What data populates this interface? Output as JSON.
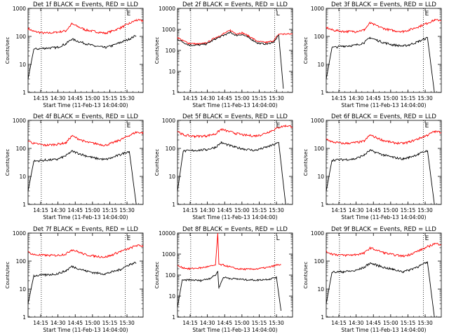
{
  "shared": {
    "ylabel": "Counts/sec",
    "xlabel": "Start Time (11-Feb-13 14:04:00)",
    "xticks": [
      {
        "t": 11,
        "label": "14:15"
      },
      {
        "t": 26,
        "label": "14:30"
      },
      {
        "t": 41,
        "label": "14:45"
      },
      {
        "t": 56,
        "label": "15:00"
      },
      {
        "t": 71,
        "label": "15:15"
      },
      {
        "t": 86,
        "label": "15:30"
      }
    ],
    "yticks": [
      {
        "v": 1,
        "label": "1"
      },
      {
        "v": 10,
        "label": "10"
      },
      {
        "v": 100,
        "label": "100"
      },
      {
        "v": 1000,
        "label": "1000"
      }
    ],
    "yticks_big": [
      {
        "v": 1,
        "label": "1"
      },
      {
        "v": 10,
        "label": "10"
      },
      {
        "v": 100,
        "label": "100"
      },
      {
        "v": 1000,
        "label": "1000"
      },
      {
        "v": 10000,
        "label": "10000"
      }
    ],
    "xlim": [
      0,
      100
    ],
    "night_markers_minutes": [
      11.5,
      84.5
    ],
    "series_colors": {
      "events": "#000000",
      "lld": "#ff0000"
    }
  },
  "chart_data": [
    {
      "type": "line",
      "title": "Det 1f BLACK = Events, RED = LLD",
      "yscale": "log",
      "ylim": [
        1,
        1000
      ],
      "marker": "E",
      "x": [
        0,
        5,
        15,
        25,
        33,
        38,
        50,
        58,
        67,
        72,
        80,
        88,
        94,
        100
      ],
      "series": [
        {
          "values": [
            190,
            150,
            130,
            140,
            160,
            280,
            170,
            150,
            130,
            150,
            200,
            290,
            380,
            360
          ]
        },
        {
          "values": [
            3,
            35,
            38,
            40,
            55,
            80,
            55,
            45,
            40,
            45,
            60,
            80,
            110,
            null
          ]
        }
      ]
    },
    {
      "type": "line",
      "title": "Det 2f BLACK = Events, RED = LLD",
      "yscale": "log",
      "ylim": [
        1,
        10000
      ],
      "marker": "L",
      "x": [
        0,
        4,
        10,
        18,
        25,
        32,
        40,
        46,
        51,
        56,
        62,
        70,
        78,
        84,
        88,
        92,
        100
      ],
      "series": [
        {
          "values": [
            420,
            300,
            220,
            200,
            220,
            380,
            620,
            900,
            620,
            700,
            480,
            260,
            240,
            300,
            600,
            600,
            600
          ]
        },
        {
          "values": [
            350,
            260,
            180,
            180,
            200,
            330,
            520,
            720,
            520,
            580,
            400,
            220,
            200,
            260,
            520,
            1.5,
            null
          ]
        }
      ]
    },
    {
      "type": "line",
      "title": "Det 3f BLACK = Events, RED = LLD",
      "yscale": "log",
      "ylim": [
        1,
        1000
      ],
      "marker": "E",
      "x": [
        0,
        5,
        15,
        25,
        33,
        38,
        50,
        58,
        67,
        72,
        80,
        88,
        94,
        100
      ],
      "series": [
        {
          "values": [
            210,
            170,
            150,
            150,
            170,
            300,
            190,
            160,
            150,
            170,
            220,
            300,
            380,
            380
          ]
        },
        {
          "values": [
            3,
            40,
            45,
            48,
            60,
            90,
            60,
            50,
            45,
            50,
            65,
            90,
            1,
            null
          ]
        }
      ]
    },
    {
      "type": "line",
      "title": "Det 4f BLACK = Events, RED = LLD",
      "yscale": "log",
      "ylim": [
        1,
        1000
      ],
      "marker": "E",
      "x": [
        0,
        5,
        15,
        25,
        33,
        38,
        50,
        58,
        67,
        72,
        80,
        88,
        94,
        100
      ],
      "series": [
        {
          "values": [
            190,
            150,
            130,
            140,
            160,
            280,
            170,
            150,
            130,
            150,
            200,
            290,
            380,
            360
          ]
        },
        {
          "values": [
            3,
            35,
            38,
            40,
            55,
            80,
            55,
            45,
            40,
            45,
            60,
            80,
            1,
            null
          ]
        }
      ]
    },
    {
      "type": "line",
      "title": "Det 5f BLACK = Events, RED = LLD",
      "yscale": "log",
      "ylim": [
        1,
        1000
      ],
      "marker": "E",
      "x": [
        0,
        5,
        15,
        25,
        33,
        38,
        50,
        58,
        67,
        72,
        80,
        88,
        94,
        100
      ],
      "series": [
        {
          "values": [
            420,
            300,
            270,
            280,
            330,
            480,
            350,
            300,
            280,
            300,
            400,
            560,
            650,
            600
          ]
        },
        {
          "values": [
            3,
            80,
            85,
            90,
            110,
            160,
            110,
            95,
            85,
            95,
            120,
            160,
            1,
            null
          ]
        }
      ]
    },
    {
      "type": "line",
      "title": "Det 6f BLACK = Events, RED = LLD",
      "yscale": "log",
      "ylim": [
        1,
        1000
      ],
      "marker": "E",
      "x": [
        0,
        5,
        15,
        25,
        33,
        38,
        50,
        58,
        67,
        72,
        80,
        88,
        94,
        100
      ],
      "series": [
        {
          "values": [
            220,
            170,
            150,
            160,
            180,
            300,
            190,
            160,
            150,
            170,
            220,
            300,
            400,
            380
          ]
        },
        {
          "values": [
            3,
            38,
            40,
            42,
            58,
            85,
            58,
            48,
            42,
            48,
            62,
            85,
            1,
            null
          ]
        }
      ]
    },
    {
      "type": "line",
      "title": "Det 7f BLACK = Events, RED = LLD",
      "yscale": "log",
      "ylim": [
        1,
        1000
      ],
      "marker": "E",
      "x": [
        0,
        5,
        15,
        25,
        33,
        38,
        50,
        58,
        67,
        72,
        80,
        88,
        94,
        100
      ],
      "series": [
        {
          "values": [
            210,
            170,
            160,
            160,
            180,
            260,
            170,
            150,
            140,
            160,
            220,
            280,
            360,
            350
          ]
        },
        {
          "values": [
            3,
            30,
            32,
            35,
            45,
            65,
            45,
            38,
            35,
            40,
            50,
            75,
            90,
            null
          ]
        }
      ]
    },
    {
      "type": "line",
      "title": "Det 8f BLACK = Events, RED = LLD",
      "yscale": "log",
      "ylim": [
        1,
        10000
      ],
      "marker": "L",
      "x": [
        0,
        4,
        10,
        20,
        28,
        33,
        35,
        36,
        40,
        45,
        52,
        60,
        70,
        80,
        86,
        90,
        96,
        100
      ],
      "series": [
        {
          "values": [
            280,
            230,
            200,
            220,
            260,
            300,
            10000,
            320,
            300,
            250,
            200,
            190,
            200,
            240,
            300,
            320,
            null,
            null
          ]
        },
        {
          "values": [
            3,
            55,
            60,
            55,
            70,
            100,
            150,
            25,
            80,
            70,
            65,
            60,
            58,
            65,
            80,
            2,
            null,
            null
          ]
        }
      ]
    },
    {
      "type": "line",
      "title": "Det 9f BLACK = Events, RED = LLD",
      "yscale": "log",
      "ylim": [
        1,
        1000
      ],
      "marker": "E",
      "x": [
        0,
        5,
        15,
        25,
        33,
        38,
        50,
        58,
        67,
        72,
        80,
        88,
        94,
        100
      ],
      "series": [
        {
          "values": [
            220,
            180,
            160,
            170,
            190,
            300,
            200,
            170,
            150,
            170,
            230,
            320,
            420,
            400
          ]
        },
        {
          "values": [
            3,
            40,
            42,
            45,
            60,
            85,
            60,
            50,
            42,
            48,
            65,
            90,
            1,
            null
          ]
        }
      ]
    }
  ]
}
